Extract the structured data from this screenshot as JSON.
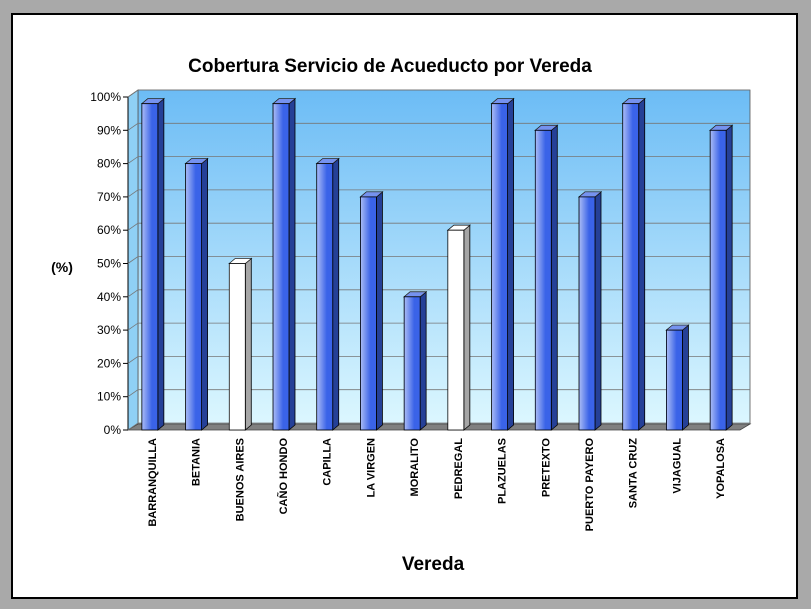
{
  "chart_data": {
    "type": "bar3d",
    "title": "Cobertura Servicio de Acueducto por Vereda",
    "x_label": "Vereda",
    "y_label": "(%)",
    "categories": [
      "BARRANQUILLA",
      "BETANIA",
      "BUENOS AIRES",
      "CAÑO HONDO",
      "CAPILLA",
      "LA VIRGEN",
      "MORALITO",
      "PEDREGAL",
      "PLAZUELAS",
      "PRETEXTO",
      "PUERTO PAYERO",
      "SANTA CRUZ",
      "VIJAGUAL",
      "YOPALOSA"
    ],
    "values": [
      98,
      80,
      50,
      98,
      80,
      70,
      40,
      60,
      98,
      90,
      70,
      98,
      30,
      90
    ],
    "colors": [
      "#3a63e8",
      "#3a63e8",
      "#ffffff",
      "#3a63e8",
      "#3a63e8",
      "#3a63e8",
      "#3a63e8",
      "#ffffff",
      "#3a63e8",
      "#3a63e8",
      "#3a63e8",
      "#3a63e8",
      "#3a63e8",
      "#3a63e8"
    ],
    "ylim": [
      0,
      100
    ],
    "yticks": [
      {
        "value": 0,
        "label": "0%"
      },
      {
        "value": 10,
        "label": "10%"
      },
      {
        "value": 20,
        "label": "20%"
      },
      {
        "value": 30,
        "label": "30%"
      },
      {
        "value": 40,
        "label": "40%"
      },
      {
        "value": 50,
        "label": "50%"
      },
      {
        "value": 60,
        "label": "60%"
      },
      {
        "value": 70,
        "label": "70%"
      },
      {
        "value": 80,
        "label": "80%"
      },
      {
        "value": 90,
        "label": "90%"
      },
      {
        "value": 100,
        "label": "100%"
      }
    ],
    "grid": true
  }
}
